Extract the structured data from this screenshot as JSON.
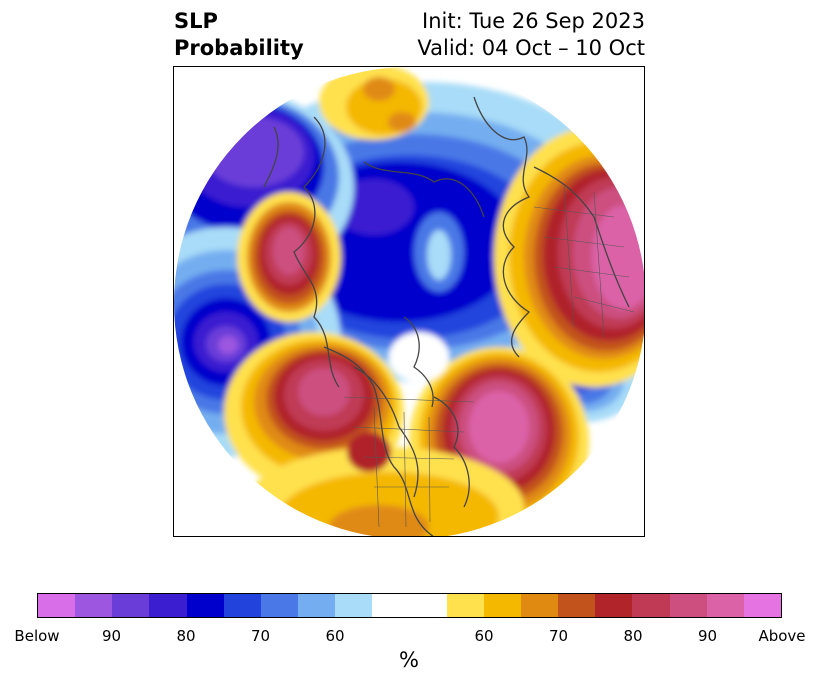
{
  "title": {
    "left_line1": "SLP",
    "left_line2": "Probability",
    "right_line1": "Init: Tue 26 Sep 2023",
    "right_line2": "Valid: 04 Oct – 10 Oct"
  },
  "colorbar": {
    "unit_label": "%",
    "below_colors": [
      "#d86ee8",
      "#9c56e0",
      "#6a3cd8",
      "#3a1ed0",
      "#0000cc",
      "#2244dd",
      "#4a78e6",
      "#74aef0",
      "#a8dcf8"
    ],
    "neutral_color": "#ffffff",
    "above_colors": [
      "#ffe14d",
      "#f4b800",
      "#e08a12",
      "#c2531c",
      "#b0242a",
      "#c03a55",
      "#cc4f80",
      "#dc62a8",
      "#e574e2"
    ],
    "tick_labels": [
      "Below",
      "90",
      "80",
      "70",
      "60",
      "60",
      "70",
      "80",
      "90",
      "Above"
    ]
  }
}
